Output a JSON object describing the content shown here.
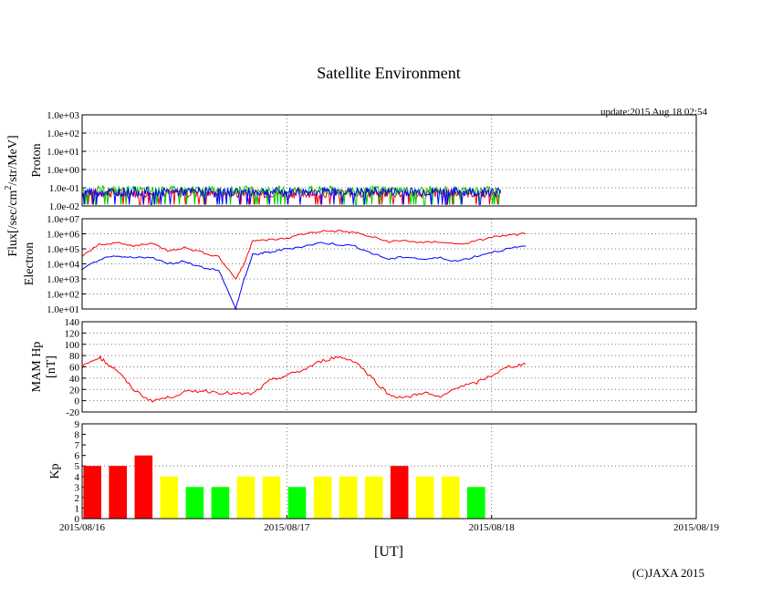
{
  "title": "Satellite Environment",
  "update": "update:2015 Aug 18 02:54",
  "copyright": "(C)JAXA 2015",
  "colors": {
    "red": "#ff0000",
    "blue": "#0000ff",
    "green": "#00cc00",
    "kp_high": "#ff0000",
    "kp_mid": "#ffff00",
    "kp_low": "#00ff00"
  },
  "chart_data": [
    {
      "type": "line",
      "name": "proton",
      "ylabel": "Proton",
      "yscale": "log",
      "ylim": [
        0.01,
        1000
      ],
      "yticks": [
        "1.0e-02",
        "1.0e-01",
        "1.0e+00",
        "1.0e+01",
        "1.0e+02",
        "1.0e+03"
      ],
      "grid": true,
      "series": [
        {
          "color": "red",
          "level_approx": 0.05
        },
        {
          "color": "green",
          "level_approx": 0.07
        },
        {
          "color": "blue",
          "level_approx": 0.06
        }
      ]
    },
    {
      "type": "line",
      "name": "electron",
      "ylabel": "Electron",
      "yscale": "log",
      "ylim": [
        10,
        10000000
      ],
      "yticks": [
        "1.0e+01",
        "1.0e+02",
        "1.0e+03",
        "1.0e+04",
        "1.0e+05",
        "1.0e+06",
        "1.0e+07"
      ],
      "grid": true,
      "x_hours": [
        0,
        2,
        4,
        6,
        8,
        10,
        12,
        14,
        16,
        18,
        19,
        20,
        21,
        22,
        24,
        26,
        28,
        30,
        32,
        34,
        36,
        38,
        40,
        42,
        44,
        46,
        48,
        50,
        52
      ],
      "series": [
        {
          "color": "red",
          "values": [
            30000,
            200000,
            250000,
            150000,
            250000,
            80000,
            120000,
            60000,
            30000,
            1000,
            10000,
            400000,
            350000,
            400000,
            500000,
            1000000,
            1500000,
            1500000,
            1200000,
            600000,
            300000,
            350000,
            250000,
            300000,
            200000,
            300000,
            600000,
            800000,
            1000000
          ]
        },
        {
          "color": "blue",
          "values": [
            4000,
            20000,
            30000,
            25000,
            30000,
            10000,
            15000,
            6000,
            4000,
            10,
            1000,
            40000,
            50000,
            60000,
            100000,
            150000,
            250000,
            200000,
            150000,
            50000,
            20000,
            30000,
            20000,
            25000,
            15000,
            30000,
            60000,
            100000,
            150000
          ]
        }
      ]
    },
    {
      "type": "line",
      "name": "mam_hp",
      "ylabel": "MAM Hp",
      "ylabel2": "[nT]",
      "ylim": [
        -20,
        140
      ],
      "yticks": [
        "-20",
        "0",
        "20",
        "40",
        "60",
        "80",
        "100",
        "120",
        "140"
      ],
      "grid": true,
      "x_hours": [
        0,
        2,
        3,
        4,
        6,
        8,
        10,
        12,
        14,
        16,
        18,
        20,
        22,
        24,
        26,
        28,
        30,
        32,
        34,
        36,
        38,
        40,
        42,
        44,
        46,
        48,
        50,
        52
      ],
      "series": [
        {
          "color": "red",
          "values": [
            60,
            78,
            65,
            55,
            20,
            0,
            5,
            15,
            18,
            15,
            12,
            12,
            35,
            45,
            55,
            70,
            78,
            70,
            40,
            10,
            5,
            15,
            5,
            25,
            30,
            45,
            60,
            65
          ]
        }
      ]
    },
    {
      "type": "bar",
      "name": "kp",
      "ylabel": "Kp",
      "ylim": [
        0,
        9
      ],
      "yticks": [
        "0",
        "1",
        "2",
        "3",
        "4",
        "5",
        "6",
        "7",
        "8",
        "9"
      ],
      "grid": true,
      "bin_hours": 3,
      "values": [
        5,
        5,
        6,
        4,
        3,
        3,
        4,
        4,
        3,
        4,
        4,
        4,
        5,
        4,
        4,
        3
      ]
    }
  ],
  "x_axis": {
    "xlabel": "[UT]",
    "range_hours": [
      0,
      72
    ],
    "tick_labels": [
      "2015/08/16",
      "2015/08/17",
      "2015/08/18",
      "2015/08/19"
    ]
  },
  "shared_ylabel": "Flux[/sec/cm²/str/MeV]"
}
